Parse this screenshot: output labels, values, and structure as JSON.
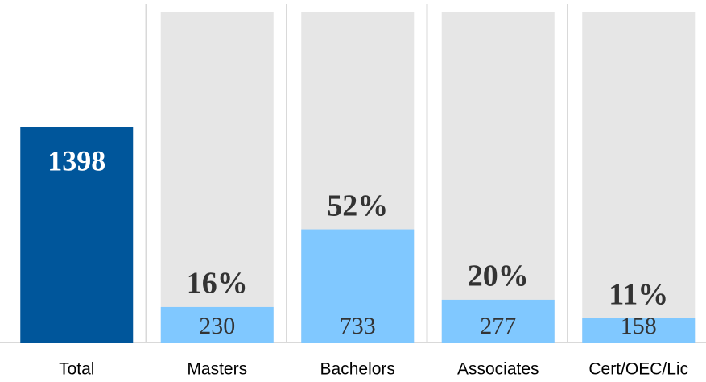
{
  "chart_data": {
    "type": "bar",
    "categories": [
      "Total",
      "Masters",
      "Bachelors",
      "Associates",
      "Cert/OEC/Lic"
    ],
    "values": [
      1398,
      230,
      733,
      277,
      158
    ],
    "percent_labels": [
      null,
      "16%",
      "52%",
      "20%",
      "11%"
    ],
    "colors": [
      "#00569b",
      "#80c8ff",
      "#80c8ff",
      "#80c8ff",
      "#80c8ff"
    ],
    "ylim": [
      0,
      2140
    ]
  }
}
